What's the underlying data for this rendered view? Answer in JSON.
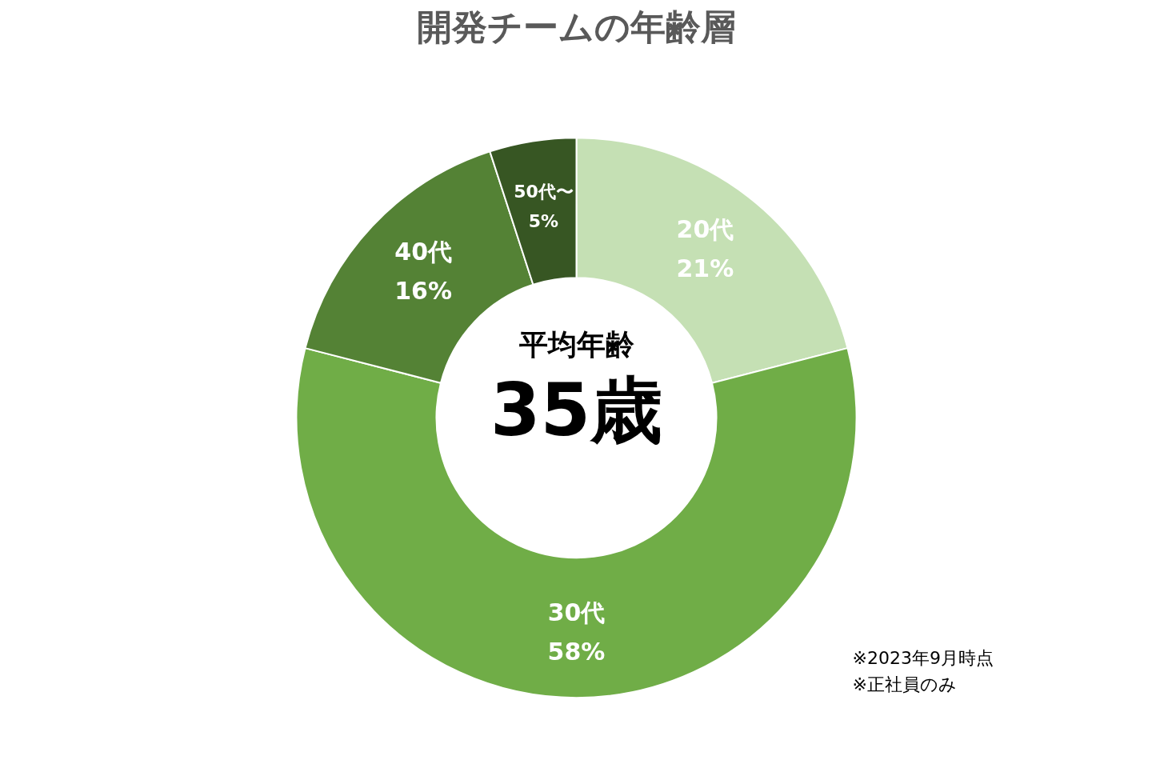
{
  "chart_data": {
    "type": "donut",
    "title": "開発チームの年齢層",
    "categories": [
      "20代",
      "30代",
      "40代",
      "50代〜"
    ],
    "values": [
      21,
      58,
      16,
      5
    ],
    "colors": [
      "#c5e0b4",
      "#70ad47",
      "#548235",
      "#375623"
    ],
    "value_labels": [
      "21%",
      "58%",
      "16%",
      "5%"
    ],
    "annotations": [
      "平均年齢",
      "35歳",
      "※2023年9月時点",
      "※正社員のみ"
    ],
    "legend": false
  }
}
